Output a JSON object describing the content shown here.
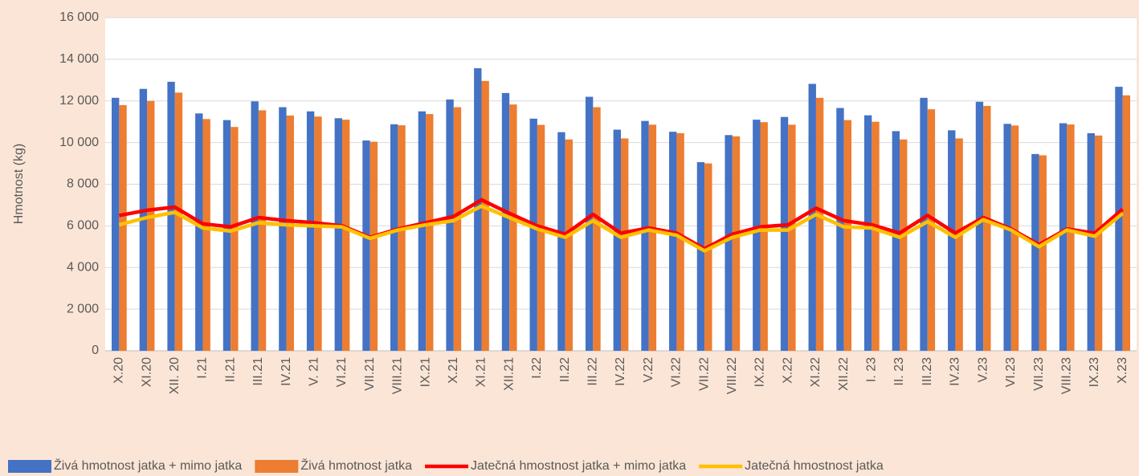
{
  "chart_data": {
    "type": "bar-line",
    "y_label": "Hmotnost (kg)",
    "categories": [
      "X.20",
      "XI.20",
      "XII. 20",
      "I.21",
      "II.21",
      "III.21",
      "IV.21",
      "V. 21",
      "VI.21",
      "VII.21",
      "VIII.21",
      "IX.21",
      "X.21",
      "XI.21",
      "XII.21",
      "I.22",
      "II.22",
      "III.22",
      "IV.22",
      "V.22",
      "VI.22",
      "VII.22",
      "VIII.22",
      "IX.22",
      "X.22",
      "XI.22",
      "XII.22",
      "I. 23",
      "II. 23",
      "III.23",
      "IV.23",
      "V.23",
      "VI.23",
      "VII.23",
      "VIII.23",
      "IX.23",
      "X.23"
    ],
    "series": [
      {
        "name": "Živá hmotnost jatka + mimo jatka",
        "type": "bar",
        "color": "#4472c4",
        "values": [
          12150,
          12580,
          12920,
          11400,
          11080,
          11980,
          11700,
          11500,
          11170,
          10100,
          10880,
          11500,
          12070,
          13570,
          12380,
          11150,
          10500,
          12200,
          10620,
          11040,
          10520,
          9060,
          10360,
          11100,
          11230,
          12820,
          11660,
          11310,
          10550,
          12150,
          10590,
          11960,
          10900,
          9450,
          10930,
          10450,
          12680
        ]
      },
      {
        "name": "Živá hmotnost jatka",
        "type": "bar",
        "color": "#ed7d31",
        "values": [
          11800,
          12000,
          12400,
          11130,
          10750,
          11550,
          11300,
          11250,
          11100,
          10040,
          10830,
          11370,
          11700,
          12960,
          11830,
          10850,
          10150,
          11700,
          10200,
          10860,
          10450,
          9000,
          10300,
          10980,
          10860,
          12150,
          11080,
          11000,
          10150,
          11600,
          10200,
          11760,
          10820,
          9390,
          10870,
          10340,
          12270
        ]
      },
      {
        "name": "Jatečná hmostnost jatka + mimo jatka",
        "type": "line",
        "color": "#ff0000",
        "values": [
          6500,
          6750,
          6900,
          6100,
          5950,
          6400,
          6250,
          6150,
          6000,
          5450,
          5850,
          6150,
          6450,
          7250,
          6600,
          6000,
          5600,
          6550,
          5650,
          5900,
          5650,
          4900,
          5600,
          5950,
          6050,
          6850,
          6250,
          6050,
          5650,
          6500,
          5650,
          6400,
          5850,
          5100,
          5850,
          5650,
          6800
        ]
      },
      {
        "name": "Jatečná hmostnost jatka",
        "type": "line",
        "color": "#ffc000",
        "values": [
          6050,
          6400,
          6650,
          5900,
          5750,
          6150,
          6050,
          6000,
          5950,
          5400,
          5800,
          6050,
          6250,
          6950,
          6400,
          5850,
          5450,
          6250,
          5450,
          5800,
          5550,
          4800,
          5450,
          5800,
          5800,
          6550,
          5950,
          5900,
          5450,
          6200,
          5450,
          6300,
          5800,
          5000,
          5800,
          5500,
          6600
        ]
      }
    ],
    "ylim": [
      0,
      16000
    ],
    "yticks": [
      0,
      {
        "value": 2000,
        "label": "2 000"
      },
      {
        "value": 4000,
        "label": "4 000"
      },
      {
        "value": 6000,
        "label": "6 000"
      },
      {
        "value": 8000,
        "label": "8 000"
      },
      {
        "value": 10000,
        "label": "10 000"
      },
      {
        "value": 12000,
        "label": "12 000"
      },
      {
        "value": 14000,
        "label": "14 000"
      },
      {
        "value": 16000,
        "label": "16 000"
      }
    ],
    "grid": true,
    "legend": "bottom"
  }
}
